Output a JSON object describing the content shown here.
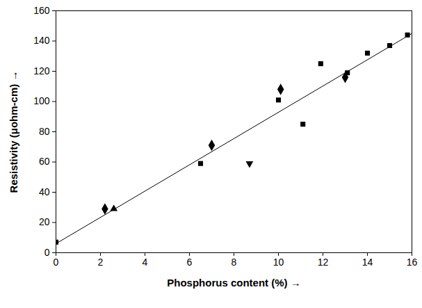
{
  "chart_data": {
    "type": "scatter",
    "xlabel": "Phosphorus content (%)",
    "ylabel": "Resistivity (μohm-cm)",
    "xlim": [
      0,
      16
    ],
    "ylim": [
      0,
      160
    ],
    "xticks": [
      0,
      2,
      4,
      6,
      8,
      10,
      12,
      14,
      16
    ],
    "yticks": [
      0,
      20,
      40,
      60,
      80,
      100,
      120,
      140,
      160
    ],
    "grid": false,
    "series": [
      {
        "marker": "square",
        "color": "#000000",
        "x": [
          0,
          6.5,
          10,
          11.1,
          11.9,
          13.1,
          14,
          15,
          15.8
        ],
        "values": [
          7,
          59,
          101,
          85,
          125,
          119,
          132,
          137,
          144
        ]
      },
      {
        "marker": "diamond",
        "color": "#000000",
        "x": [
          2.2,
          7,
          10.1,
          13
        ],
        "values": [
          29,
          71,
          108,
          116
        ]
      },
      {
        "marker": "triangle-up",
        "color": "#000000",
        "x": [
          2.6
        ],
        "values": [
          29
        ]
      },
      {
        "marker": "triangle-down",
        "color": "#000000",
        "x": [
          8.7
        ],
        "values": [
          59
        ]
      },
      {
        "type": "line",
        "line_style": "solid",
        "color": "#000000",
        "x": [
          0,
          16
        ],
        "values": [
          6,
          145
        ]
      }
    ]
  }
}
